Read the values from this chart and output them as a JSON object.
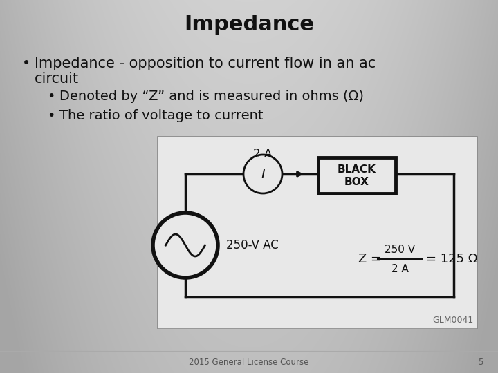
{
  "title": "Impedance",
  "title_fontsize": 22,
  "title_fontweight": "bold",
  "bullet1a": "Impedance - opposition to current flow in an ac",
  "bullet1b": "circuit",
  "bullet2": "Denoted by “Z” and is measured in ohms (Ω)",
  "bullet3": "The ratio of voltage to current",
  "footer": "2015 General License Course",
  "page_num": "5",
  "diagram_label_2A": "2 A",
  "diagram_label_I": "I",
  "diagram_label_AC": "250-V AC",
  "diagram_label_BBOX1": "BLACK",
  "diagram_label_BBOX2": "BOX",
  "diagram_label_Z_pre": "Z = ",
  "diagram_label_num": "250 V",
  "diagram_label_den": "2 A",
  "diagram_label_eq": "= 125 Ω",
  "diagram_label_GLM": "GLM0041",
  "text_color": "#111111",
  "wire_color": "#111111",
  "diagram_bg": "#e8e8e8",
  "diagram_edge": "#888888",
  "footer_color": "#555555",
  "font_family": "DejaVu Sans"
}
